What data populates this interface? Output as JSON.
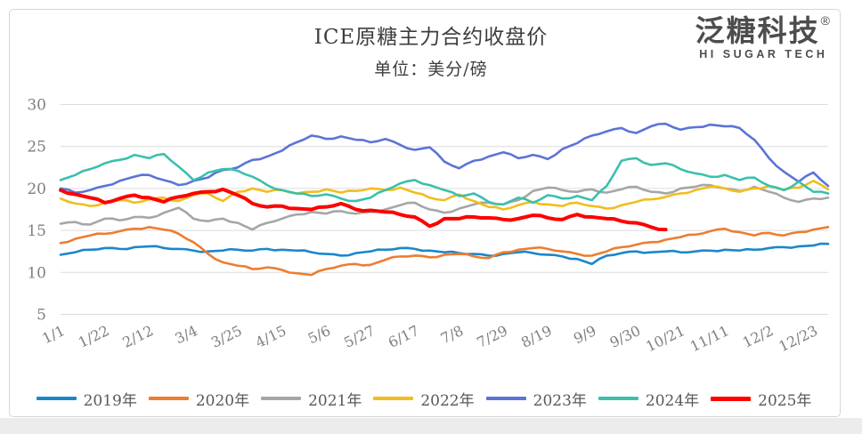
{
  "frame": {
    "border_color": "#d6d6d6",
    "background": "#ffffff",
    "bottom_strip_color": "#ececec"
  },
  "header": {
    "title": "ICE原糖主力合约收盘价",
    "subtitle": "单位：美分/磅"
  },
  "logo": {
    "brand": "泛糖科技",
    "registered": "®",
    "tagline": "HI SUGAR TECH"
  },
  "chart_data": {
    "type": "line",
    "title": "ICE原糖主力合约收盘价",
    "unit_label": "单位：美分/磅",
    "ylim": [
      5,
      30
    ],
    "yticks": [
      30,
      25,
      20,
      15,
      10,
      5
    ],
    "x_tick_labels": [
      "1/1",
      "1/22",
      "2/12",
      "3/4",
      "3/25",
      "4/15",
      "5/6",
      "5/27",
      "6/17",
      "7/8",
      "7/29",
      "8/19",
      "9/9",
      "9/30",
      "10/21",
      "11/11",
      "12/2",
      "12/23"
    ],
    "x_tick_day_interval": 21,
    "days_in_year": 364,
    "grid": "horizontal-only",
    "legend_position": "bottom",
    "colors": {
      "grid": "#dcdcdc",
      "axis_text": "#7f7f7f",
      "legend_text": "#595959"
    },
    "series": [
      {
        "name": "2019年",
        "color": "#1B87C9",
        "width": 2.6,
        "start_day": 0,
        "step_days": 7,
        "values": [
          12.1,
          12.4,
          12.7,
          12.9,
          12.8,
          13.0,
          13.1,
          12.9,
          12.8,
          12.6,
          12.5,
          12.6,
          12.7,
          12.6,
          12.8,
          12.7,
          12.6,
          12.4,
          12.2,
          12.0,
          12.3,
          12.5,
          12.7,
          12.9,
          12.8,
          12.6,
          12.4,
          12.3,
          12.2,
          12.0,
          12.2,
          12.4,
          12.3,
          12.1,
          11.9,
          11.6,
          11.0,
          12.0,
          12.3,
          12.5,
          12.4,
          12.5,
          12.4,
          12.5,
          12.6,
          12.7,
          12.6,
          12.7,
          12.9,
          13.0,
          13.1,
          13.2,
          13.4
        ]
      },
      {
        "name": "2020年",
        "color": "#ED7D31",
        "width": 2.6,
        "start_day": 0,
        "step_days": 7,
        "values": [
          13.5,
          14.0,
          14.4,
          14.6,
          14.9,
          15.2,
          15.4,
          15.1,
          14.6,
          13.6,
          12.2,
          11.2,
          10.8,
          10.4,
          10.6,
          10.3,
          9.9,
          9.7,
          10.4,
          10.8,
          11.0,
          10.9,
          11.5,
          11.9,
          12.0,
          11.8,
          12.1,
          12.2,
          11.9,
          11.7,
          12.4,
          12.7,
          12.9,
          12.8,
          12.5,
          12.2,
          12.0,
          12.5,
          13.0,
          13.3,
          13.6,
          13.9,
          14.2,
          14.5,
          14.9,
          15.2,
          14.8,
          14.4,
          14.7,
          14.4,
          14.8,
          15.1,
          15.4
        ]
      },
      {
        "name": "2021年",
        "color": "#A6A6A6",
        "width": 2.6,
        "start_day": 0,
        "step_days": 7,
        "values": [
          15.8,
          16.0,
          15.7,
          16.4,
          16.2,
          16.6,
          16.5,
          17.1,
          17.7,
          16.4,
          16.1,
          16.4,
          15.9,
          15.1,
          15.9,
          16.4,
          16.9,
          17.2,
          17.0,
          17.3,
          17.0,
          17.2,
          17.5,
          18.0,
          18.3,
          17.5,
          17.1,
          17.6,
          18.1,
          18.3,
          18.1,
          18.6,
          19.7,
          20.1,
          19.8,
          19.6,
          19.9,
          19.5,
          19.9,
          20.2,
          19.6,
          19.4,
          20.0,
          20.2,
          20.4,
          20.0,
          19.7,
          20.2,
          19.6,
          18.9,
          18.4,
          18.8,
          18.9
        ]
      },
      {
        "name": "2022年",
        "color": "#F2BD1D",
        "width": 2.6,
        "start_day": 0,
        "step_days": 7,
        "values": [
          18.8,
          18.2,
          17.9,
          18.3,
          18.6,
          18.3,
          18.7,
          18.9,
          18.5,
          19.2,
          19.4,
          18.5,
          19.6,
          20.0,
          19.6,
          19.8,
          19.4,
          19.6,
          19.9,
          19.5,
          19.7,
          20.0,
          19.8,
          20.1,
          19.5,
          18.9,
          18.6,
          19.3,
          18.5,
          17.8,
          17.5,
          18.0,
          18.4,
          18.1,
          17.9,
          18.3,
          17.9,
          17.6,
          18.0,
          18.4,
          18.7,
          19.0,
          19.4,
          19.8,
          20.2,
          20.0,
          19.6,
          20.0,
          20.3,
          19.8,
          20.1,
          20.9,
          19.9
        ]
      },
      {
        "name": "2023年",
        "color": "#5B74D6",
        "width": 2.6,
        "start_day": 0,
        "step_days": 7,
        "values": [
          20.0,
          19.5,
          19.8,
          20.3,
          20.9,
          21.4,
          21.6,
          21.0,
          20.4,
          20.9,
          21.3,
          22.2,
          22.5,
          23.4,
          23.8,
          24.5,
          25.5,
          26.3,
          25.9,
          26.2,
          25.8,
          25.5,
          25.9,
          25.2,
          24.6,
          24.9,
          23.2,
          22.4,
          23.3,
          23.8,
          24.3,
          23.6,
          24.0,
          23.5,
          24.7,
          25.4,
          26.3,
          26.8,
          27.2,
          26.6,
          27.4,
          27.7,
          27.0,
          27.3,
          27.6,
          27.4,
          27.2,
          25.8,
          23.6,
          22.0,
          20.8,
          21.9,
          20.3
        ]
      },
      {
        "name": "2024年",
        "color": "#3BC0AC",
        "width": 2.6,
        "start_day": 0,
        "step_days": 7,
        "values": [
          21.0,
          21.6,
          22.3,
          23.0,
          23.4,
          24.0,
          23.6,
          24.1,
          22.6,
          21.0,
          21.9,
          22.3,
          22.1,
          21.4,
          20.4,
          19.8,
          19.4,
          19.1,
          19.3,
          18.8,
          18.5,
          18.9,
          19.8,
          20.6,
          21.0,
          20.4,
          19.8,
          19.1,
          19.4,
          18.4,
          18.1,
          18.9,
          18.3,
          19.2,
          18.8,
          19.1,
          18.6,
          20.3,
          23.3,
          23.6,
          22.8,
          23.0,
          22.3,
          21.8,
          21.4,
          21.6,
          21.0,
          21.3,
          20.3,
          19.8,
          20.8,
          19.6,
          19.4
        ]
      },
      {
        "name": "2025年",
        "color": "#FE0000",
        "width": 4,
        "start_day": 0,
        "step_days": 7,
        "values": [
          19.8,
          19.3,
          18.9,
          18.3,
          18.8,
          19.2,
          18.9,
          18.4,
          19.0,
          19.4,
          19.6,
          19.9,
          19.2,
          18.2,
          17.8,
          17.9,
          17.6,
          17.5,
          17.8,
          18.2,
          17.5,
          17.4,
          17.2,
          16.9,
          16.6,
          15.5,
          16.4,
          16.4,
          16.6,
          16.5,
          16.3,
          16.4,
          16.8,
          16.5,
          16.3,
          16.9,
          16.6,
          16.4,
          16.1,
          15.9,
          15.4,
          15.1
        ]
      }
    ]
  }
}
